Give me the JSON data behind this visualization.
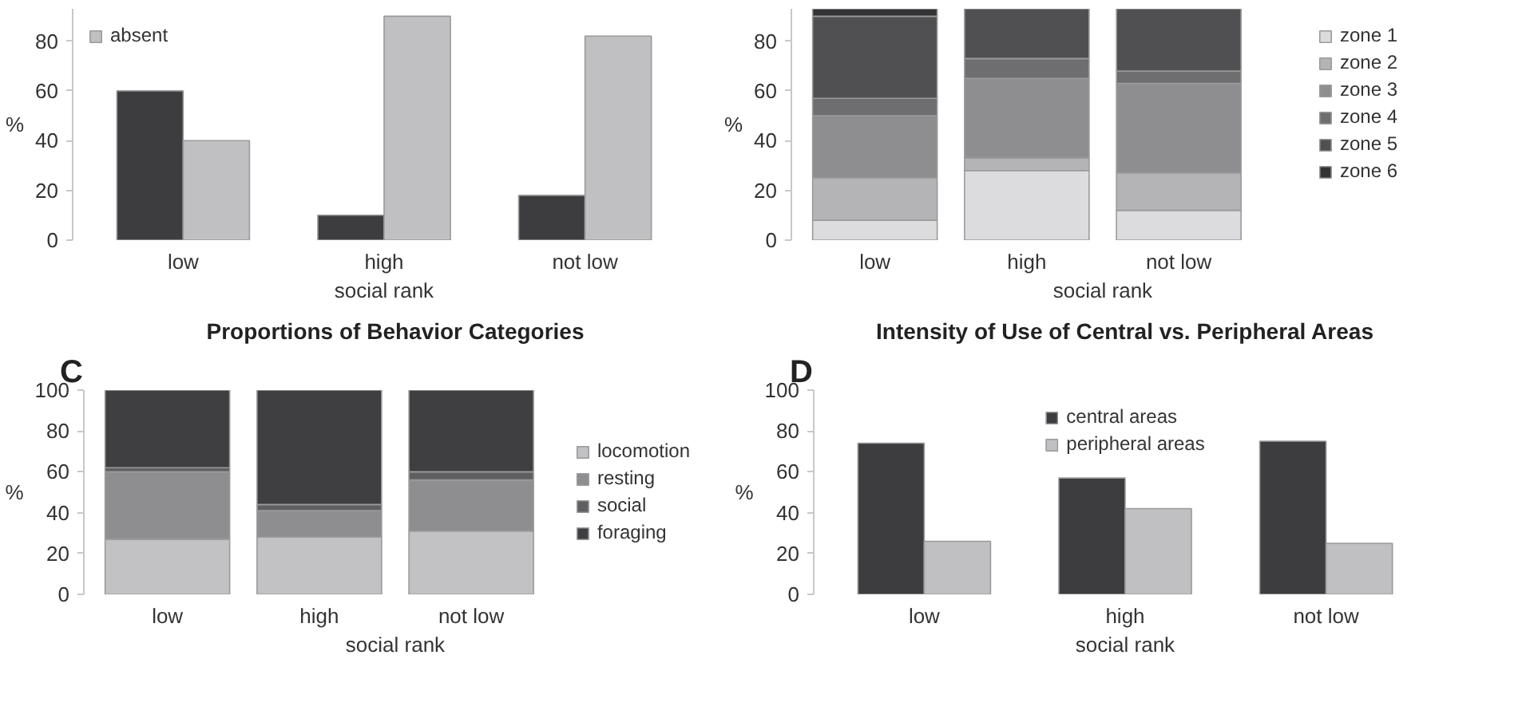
{
  "chart_data": [
    {
      "type": "bar",
      "xlabel": "social rank",
      "ylabel": "%",
      "categories": [
        "low",
        "high",
        "not low"
      ],
      "ylim": [
        0,
        93
      ],
      "yticks": [
        0,
        20,
        40,
        60,
        80
      ],
      "grid": false,
      "legend": "top left",
      "series": [
        {
          "color": "#3d3d3f",
          "values": [
            60,
            10,
            18
          ]
        },
        {
          "name": "absent",
          "color": "#c0c0c2",
          "values": [
            40,
            90,
            82
          ]
        }
      ]
    },
    {
      "type": "bar",
      "stacked": true,
      "xlabel": "social rank",
      "ylabel": "%",
      "categories": [
        "low",
        "high",
        "not low"
      ],
      "ylim": [
        0,
        93
      ],
      "yticks": [
        0,
        20,
        40,
        60,
        80
      ],
      "grid": false,
      "legend": "right",
      "series": [
        {
          "name": "zone 1",
          "color": "#dcdcde",
          "values": [
            8,
            28,
            12
          ]
        },
        {
          "name": "zone 2",
          "color": "#b4b4b6",
          "values": [
            17,
            5,
            15
          ]
        },
        {
          "name": "zone 3",
          "color": "#8e8e90",
          "values": [
            25,
            32,
            36
          ]
        },
        {
          "name": "zone 4",
          "color": "#6e6e70",
          "values": [
            7,
            8,
            5
          ]
        },
        {
          "name": "zone 5",
          "color": "#505052",
          "values": [
            33,
            20,
            25
          ]
        },
        {
          "name": "zone 6",
          "color": "#333335",
          "values": [
            3,
            0,
            0
          ]
        }
      ]
    },
    {
      "type": "bar",
      "stacked": true,
      "title": "Proportions of Behavior Categories",
      "annotations": [
        "C"
      ],
      "xlabel": "social rank",
      "ylabel": "%",
      "categories": [
        "low",
        "high",
        "not low"
      ],
      "ylim": [
        0,
        100
      ],
      "yticks": [
        0,
        20,
        40,
        60,
        80,
        100
      ],
      "grid": false,
      "legend": "right",
      "series": [
        {
          "name": "locomotion",
          "color": "#c2c2c4",
          "values": [
            27,
            28,
            31
          ]
        },
        {
          "name": "resting",
          "color": "#8e8e90",
          "values": [
            33,
            13,
            25
          ]
        },
        {
          "name": "social",
          "color": "#5f5f61",
          "values": [
            2,
            3,
            4
          ]
        },
        {
          "name": "foraging",
          "color": "#3f3f41",
          "values": [
            38,
            56,
            40
          ]
        }
      ]
    },
    {
      "type": "bar",
      "title": "Intensity of Use of Central vs. Peripheral Areas",
      "annotations": [
        "D"
      ],
      "xlabel": "social rank",
      "ylabel": "%",
      "categories": [
        "low",
        "high",
        "not low"
      ],
      "ylim": [
        0,
        100
      ],
      "yticks": [
        0,
        20,
        40,
        60,
        80,
        100
      ],
      "grid": false,
      "legend": "top",
      "series": [
        {
          "name": "central areas",
          "color": "#3d3d3f",
          "values": [
            74,
            57,
            75
          ]
        },
        {
          "name": "peripheral areas",
          "color": "#c0c0c2",
          "values": [
            26,
            42,
            25
          ]
        }
      ]
    }
  ]
}
